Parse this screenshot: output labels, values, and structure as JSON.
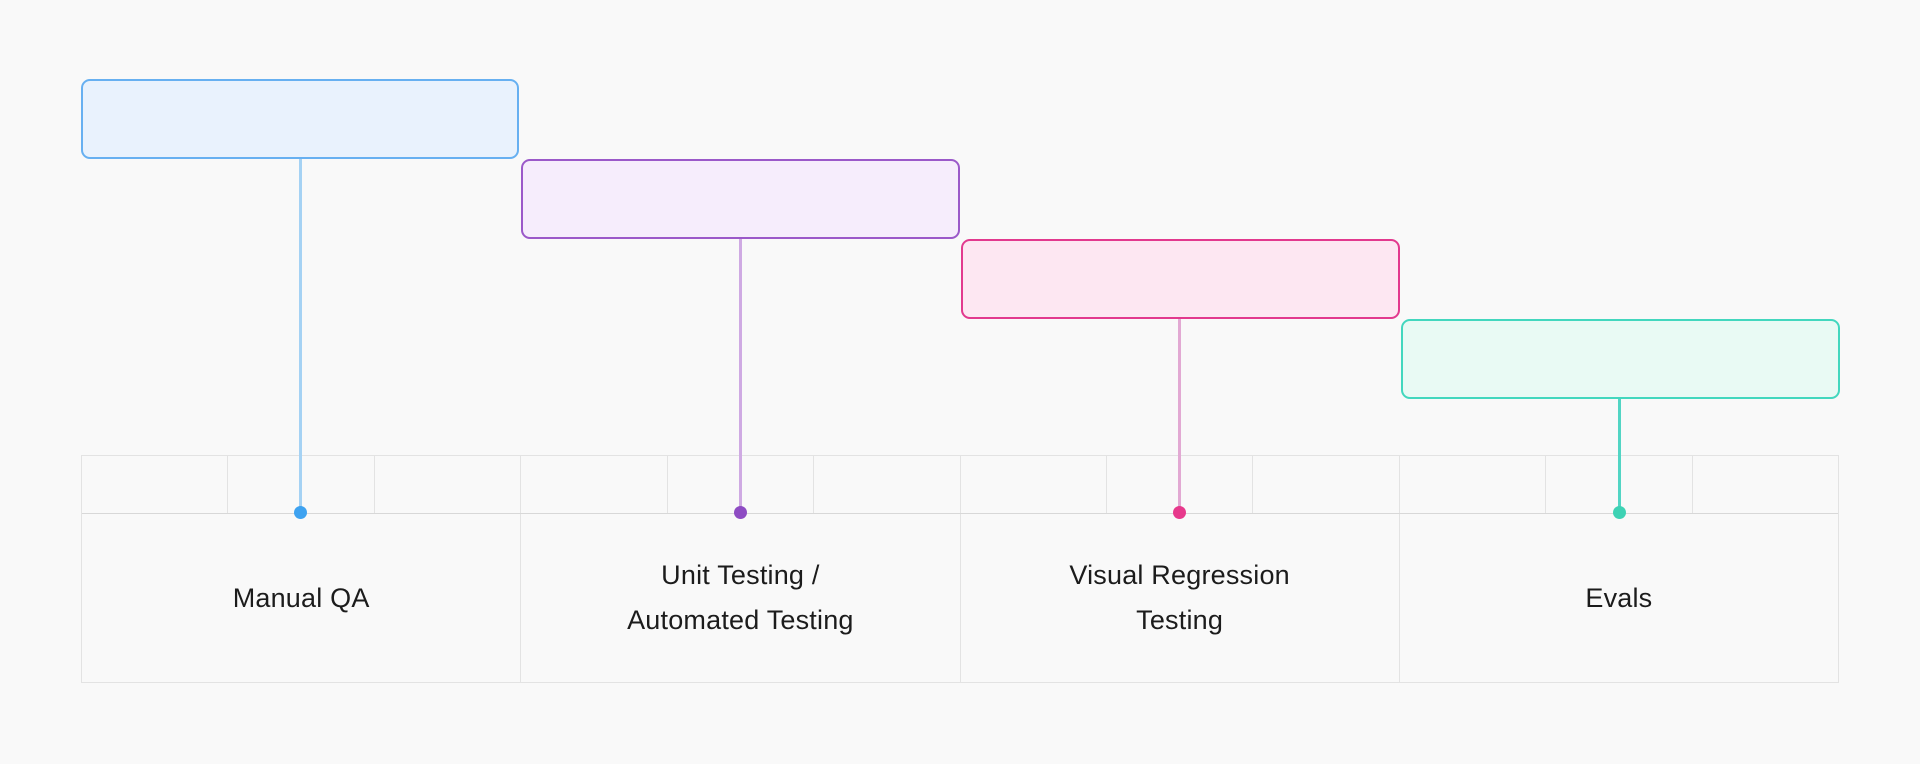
{
  "canvas": {
    "background": "#f9f9f9",
    "grid_color": "#e3e3e3",
    "baseline_color": "#d8d8d8",
    "text_color": "#1c1c1c"
  },
  "timeline": {
    "columns": 4,
    "ticks_per_column": 3
  },
  "stages": [
    {
      "id": "manual-qa",
      "label": "Manual QA",
      "box_fill": "#e9f2fd",
      "box_border": "#67b0f1",
      "line_color": "#a5d2f4",
      "dot_color": "#3ea2f0"
    },
    {
      "id": "unit-automated-testing",
      "label": "Unit Testing /\nAutomated Testing",
      "box_fill": "#f6edfc",
      "box_border": "#9b59c9",
      "line_color": "#cfaae3",
      "dot_color": "#8e4cc3"
    },
    {
      "id": "visual-regression-testing",
      "label": "Visual Regression\nTesting",
      "box_fill": "#fde7f2",
      "box_border": "#e2398e",
      "line_color": "#e2a9d3",
      "dot_color": "#e7398c"
    },
    {
      "id": "evals",
      "label": "Evals",
      "box_fill": "#e9faf4",
      "box_border": "#43d7be",
      "line_color": "#52d5c4",
      "dot_color": "#3ed2b4"
    }
  ]
}
